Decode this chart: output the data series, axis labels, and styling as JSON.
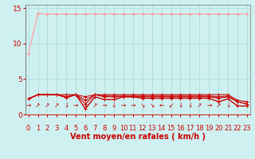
{
  "title": "",
  "xlabel": "Vent moyen/en rafales ( km/h )",
  "background_color": "#cff0f0",
  "grid_color": "#aadddd",
  "x": [
    0,
    1,
    2,
    3,
    4,
    5,
    6,
    7,
    8,
    9,
    10,
    11,
    12,
    13,
    14,
    15,
    16,
    17,
    18,
    19,
    20,
    21,
    22,
    23
  ],
  "line1": [
    8.5,
    14.3,
    14.2,
    14.2,
    14.2,
    14.2,
    14.2,
    14.2,
    14.2,
    14.2,
    14.2,
    14.2,
    14.2,
    14.2,
    14.2,
    14.2,
    14.2,
    14.2,
    14.2,
    14.2,
    14.2,
    14.2,
    14.2,
    14.2
  ],
  "line2": [
    2.2,
    2.8,
    2.8,
    2.8,
    2.4,
    2.8,
    0.8,
    2.5,
    2.1,
    2.1,
    2.5,
    2.5,
    2.3,
    2.3,
    2.3,
    2.3,
    2.3,
    2.3,
    2.3,
    2.3,
    1.8,
    2.2,
    1.2,
    1.2
  ],
  "line3": [
    2.2,
    2.8,
    2.8,
    2.8,
    2.4,
    2.8,
    1.5,
    2.8,
    2.5,
    2.5,
    2.5,
    2.5,
    2.5,
    2.5,
    2.5,
    2.5,
    2.5,
    2.5,
    2.5,
    2.5,
    2.3,
    2.5,
    1.8,
    1.5
  ],
  "line4": [
    2.2,
    2.8,
    2.8,
    2.8,
    2.5,
    2.8,
    2.0,
    2.8,
    2.6,
    2.6,
    2.6,
    2.6,
    2.6,
    2.6,
    2.6,
    2.6,
    2.6,
    2.6,
    2.6,
    2.6,
    2.5,
    2.6,
    1.8,
    1.5
  ],
  "line5": [
    2.2,
    2.8,
    2.8,
    2.8,
    2.8,
    2.8,
    2.5,
    2.8,
    2.8,
    2.8,
    2.8,
    2.8,
    2.8,
    2.8,
    2.8,
    2.8,
    2.8,
    2.8,
    2.8,
    2.8,
    2.8,
    2.8,
    2.0,
    1.8
  ],
  "line1_color": "#ff9999",
  "line2_color": "#cc0000",
  "line345_color": "#cc0000",
  "ylim": [
    0,
    15.5
  ],
  "xlim": [
    -0.3,
    23.3
  ],
  "yticks": [
    0,
    5,
    10,
    15
  ],
  "xticks": [
    0,
    1,
    2,
    3,
    4,
    5,
    6,
    7,
    8,
    9,
    10,
    11,
    12,
    13,
    14,
    15,
    16,
    17,
    18,
    19,
    20,
    21,
    22,
    23
  ],
  "arrow_labels": [
    "→",
    "↗",
    "↗",
    "↗",
    "↓",
    "→",
    "↓",
    "↗",
    "→",
    "↓",
    "→",
    "→",
    "↘",
    "↘",
    "←",
    "↙",
    "↓",
    "↓",
    "↗",
    "→",
    "↗",
    "↓",
    "↓",
    "↓"
  ],
  "xlabel_fontsize": 7,
  "tick_fontsize": 6.5,
  "arrow_fontsize": 5.5
}
